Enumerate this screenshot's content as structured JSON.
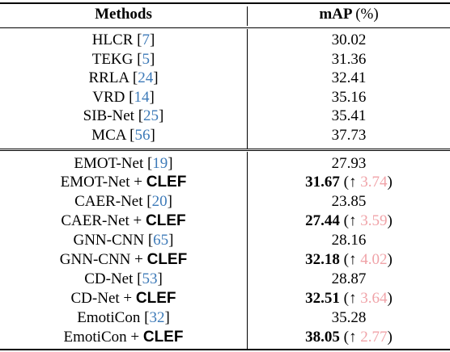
{
  "table": {
    "header": {
      "methods": "Methods",
      "map": "mAP",
      "map_unit": "(%)"
    },
    "group1": [
      {
        "name": "HLCR",
        "cite": "7",
        "value": "30.02"
      },
      {
        "name": "TEKG",
        "cite": "5",
        "value": "31.36"
      },
      {
        "name": "RRLA",
        "cite": "24",
        "value": "32.41"
      },
      {
        "name": "VRD",
        "cite": "14",
        "value": "35.16"
      },
      {
        "name": "SIB-Net",
        "cite": "25",
        "value": "35.41"
      },
      {
        "name": "MCA",
        "cite": "56",
        "value": "37.73"
      }
    ],
    "group2": [
      {
        "name": "EMOT-Net",
        "cite": "19",
        "value": "27.93"
      },
      {
        "name": "EMOT-Net",
        "clef": "CLEF",
        "value": "31.67",
        "gain": "3.74"
      },
      {
        "name": "CAER-Net",
        "cite": "20",
        "value": "23.85"
      },
      {
        "name": "CAER-Net",
        "clef": "CLEF",
        "value": "27.44",
        "gain": "3.59"
      },
      {
        "name": "GNN-CNN",
        "cite": "65",
        "value": "28.16"
      },
      {
        "name": "GNN-CNN",
        "clef": "CLEF",
        "value": "32.18",
        "gain": "4.02"
      },
      {
        "name": "CD-Net",
        "cite": "53",
        "value": "28.87"
      },
      {
        "name": "CD-Net",
        "clef": "CLEF",
        "value": "32.51",
        "gain": "3.64"
      },
      {
        "name": "EmotiCon",
        "cite": "32",
        "value": "35.28"
      },
      {
        "name": "EmotiCon",
        "clef": "CLEF",
        "value": "38.05",
        "gain": "2.77"
      }
    ]
  },
  "colors": {
    "citation": "#3d7ab8",
    "gain": "#f0a3a8"
  }
}
